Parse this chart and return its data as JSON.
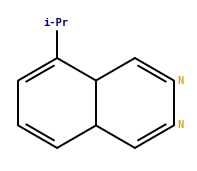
{
  "background_color": "#ffffff",
  "bond_color": "#000000",
  "n_color": "#daa520",
  "label_color": "#00008b",
  "label_text": "i-Pr",
  "n_label": "N",
  "fig_width": 1.97,
  "fig_height": 1.71,
  "dpi": 100,
  "lw": 1.4,
  "font_size": 7.5
}
